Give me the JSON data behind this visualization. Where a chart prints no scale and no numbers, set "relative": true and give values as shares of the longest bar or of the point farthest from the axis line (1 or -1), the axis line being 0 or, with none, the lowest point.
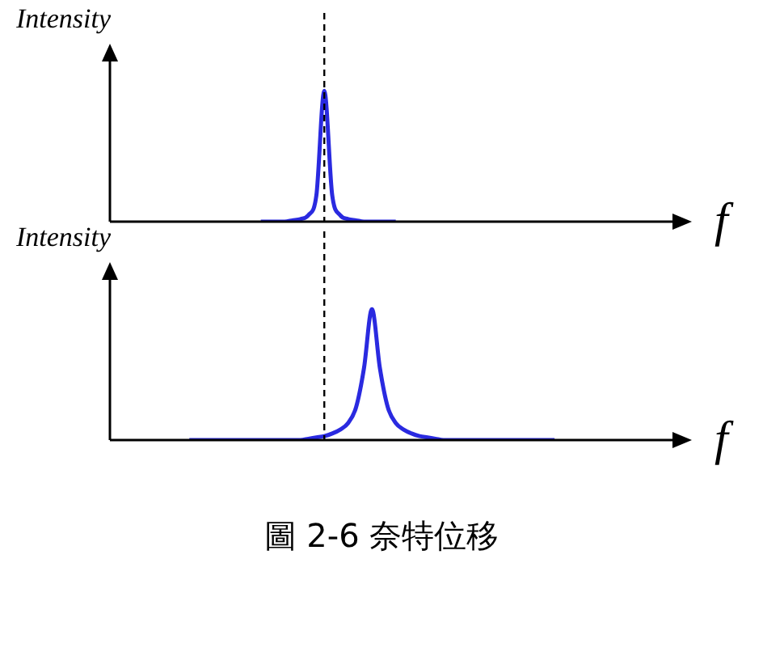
{
  "chart_data": [
    {
      "type": "line",
      "relative": true,
      "ylabel": "Intensity",
      "xlabel": "f",
      "categories": [
        null,
        null,
        null,
        null,
        null,
        null,
        null,
        null,
        null,
        null,
        null,
        null,
        null,
        null,
        null,
        null,
        null,
        null,
        null,
        null,
        null,
        null,
        null,
        null,
        null,
        null,
        null,
        null,
        null,
        null,
        null,
        null,
        null,
        null,
        null,
        null,
        null,
        null,
        null,
        null,
        null,
        null,
        null,
        null,
        null,
        null,
        null,
        null,
        null,
        null,
        null,
        null,
        null,
        null,
        null,
        null,
        null,
        null,
        null,
        null,
        null,
        null,
        null,
        null,
        null,
        null,
        null,
        null,
        null
      ],
      "series": [
        {
          "color": "#2a2ae0",
          "values": [
            null,
            null,
            null,
            null,
            null,
            null,
            null,
            null,
            null,
            null,
            null,
            null,
            null,
            null,
            null,
            null,
            null,
            null,
            null,
            0,
            0,
            0,
            0,
            0.01,
            0.02,
            0.05,
            0.2,
            1,
            0.2,
            0.05,
            0.02,
            0.01,
            0,
            0,
            0,
            0,
            0,
            null,
            null,
            null,
            null,
            null,
            null,
            null,
            null,
            null,
            null,
            null,
            null,
            null,
            null,
            null,
            null,
            null,
            null,
            null,
            null,
            null,
            null,
            null,
            null,
            null,
            null,
            null,
            null,
            null,
            null,
            null,
            null
          ]
        }
      ]
    },
    {
      "type": "line",
      "relative": true,
      "ylabel": "Intensity",
      "xlabel": "f",
      "categories": [
        null,
        null,
        null,
        null,
        null,
        null,
        null,
        null,
        null,
        null,
        null,
        null,
        null,
        null,
        null,
        null,
        null,
        null,
        null,
        null,
        null,
        null,
        null,
        null,
        null,
        null,
        null,
        null,
        null,
        null,
        null,
        null,
        null,
        null,
        null,
        null,
        null,
        null,
        null,
        null,
        null,
        null,
        null,
        null,
        null,
        null,
        null,
        null,
        null,
        null,
        null,
        null,
        null,
        null,
        null,
        null,
        null,
        null,
        null,
        null,
        null,
        null,
        null,
        null,
        null,
        null,
        null,
        null,
        null
      ],
      "series": [
        {
          "color": "#2a2ae0",
          "values": [
            null,
            null,
            null,
            null,
            null,
            null,
            null,
            null,
            null,
            null,
            0,
            0,
            0,
            0,
            0,
            0,
            0,
            0,
            0,
            0,
            0,
            0,
            0,
            0,
            0,
            0.01,
            0.02,
            0.03,
            0.05,
            0.08,
            0.13,
            0.25,
            0.55,
            1,
            0.55,
            0.25,
            0.13,
            0.08,
            0.05,
            0.03,
            0.02,
            0.01,
            0,
            0,
            0,
            0,
            0,
            0,
            0,
            0,
            0,
            0,
            0,
            0,
            0,
            0,
            0,
            null,
            null,
            null,
            null,
            null,
            null,
            null,
            null,
            null,
            null,
            null,
            null
          ]
        }
      ],
      "annotations": [
        "圖 2-6 奈特位移"
      ]
    }
  ]
}
